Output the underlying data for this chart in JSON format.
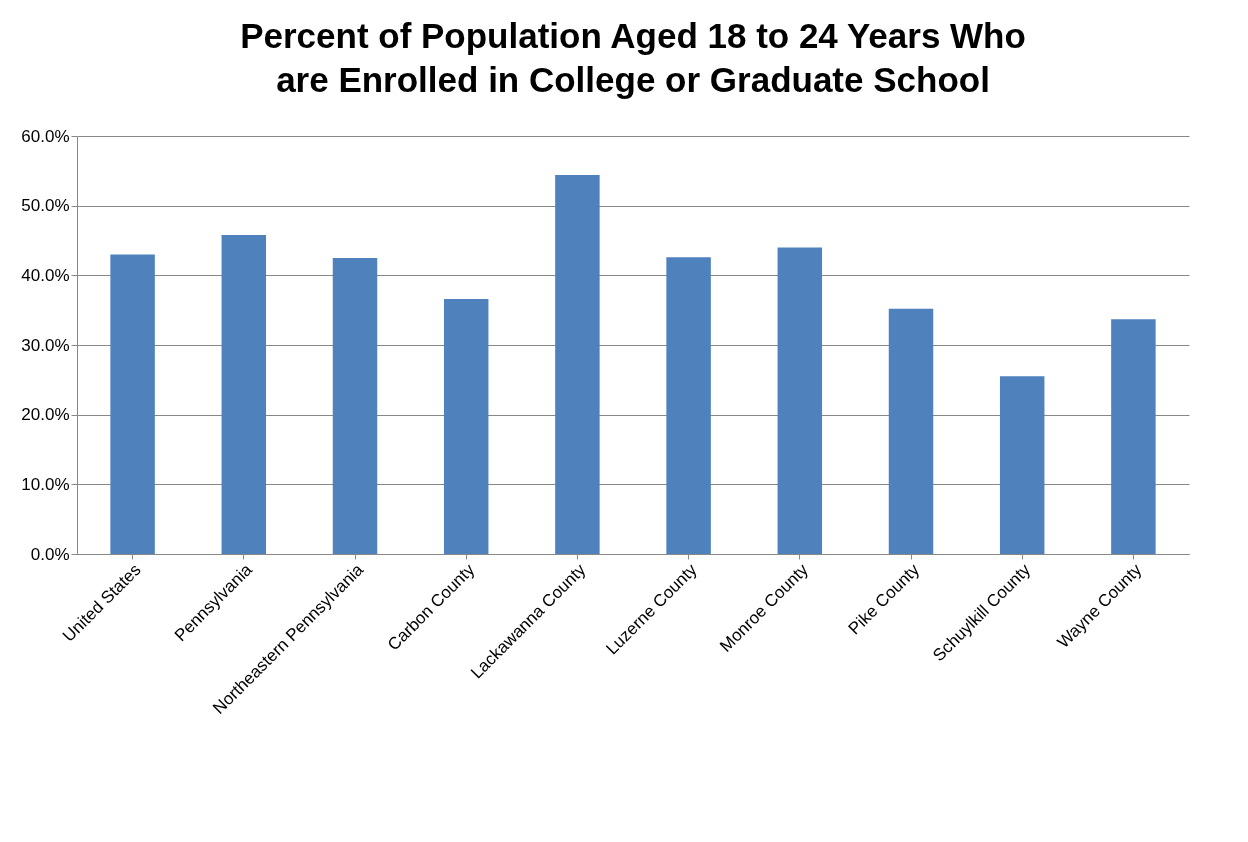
{
  "chart_data": {
    "type": "bar",
    "title": "Percent of Population Aged 18 to 24 Years Who are Enrolled in College or Graduate School",
    "categories": [
      "United States",
      "Pennsylvania",
      "Northeastern Pennsylvania",
      "Carbon County",
      "Lackawanna County",
      "Luzerne County",
      "Monroe County",
      "Pike County",
      "Schuylkill County",
      "Wayne County"
    ],
    "values": [
      43.0,
      45.8,
      42.5,
      36.6,
      54.4,
      42.6,
      44.0,
      35.2,
      25.5,
      33.7
    ],
    "color": "#4f81bd",
    "ylim": [
      0,
      60
    ],
    "yticks": [
      {
        "value": 0,
        "label": "0.0%"
      },
      {
        "value": 10,
        "label": "10.0%"
      },
      {
        "value": 20,
        "label": "20.0%"
      },
      {
        "value": 30,
        "label": "30.0%"
      },
      {
        "value": 40,
        "label": "40.0%"
      },
      {
        "value": 50,
        "label": "50.0%"
      },
      {
        "value": 60,
        "label": "60.0%"
      }
    ],
    "grid": "y"
  }
}
